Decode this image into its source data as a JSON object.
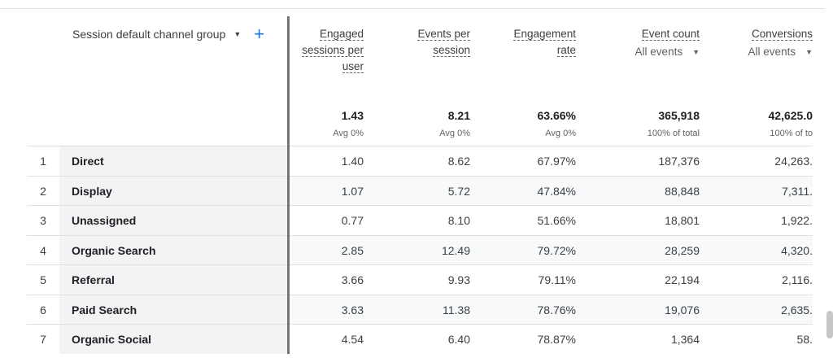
{
  "table": {
    "dimension": {
      "label": "Session default channel group"
    },
    "metrics": [
      {
        "title_lines": [
          "Engaged",
          "sessions per",
          "user"
        ],
        "total": "1.43",
        "total_note": "Avg 0%",
        "has_dropdown": false
      },
      {
        "title_lines": [
          "Events per",
          "session"
        ],
        "total": "8.21",
        "total_note": "Avg 0%",
        "has_dropdown": false
      },
      {
        "title_lines": [
          "Engagement",
          "rate"
        ],
        "total": "63.66%",
        "total_note": "Avg 0%",
        "has_dropdown": false
      },
      {
        "title_lines": [
          "Event count"
        ],
        "subtitle": "All events",
        "total": "365,918",
        "total_note": "100% of total",
        "has_dropdown": true
      },
      {
        "title_lines": [
          "Conversions"
        ],
        "subtitle": "All events",
        "total": "42,625.0",
        "total_note": "100% of to",
        "has_dropdown": true
      }
    ],
    "rows": [
      {
        "rank": "1",
        "channel": "Direct",
        "values": [
          "1.40",
          "8.62",
          "67.97%",
          "187,376",
          "24,263."
        ]
      },
      {
        "rank": "2",
        "channel": "Display",
        "values": [
          "1.07",
          "5.72",
          "47.84%",
          "88,848",
          "7,311."
        ]
      },
      {
        "rank": "3",
        "channel": "Unassigned",
        "values": [
          "0.77",
          "8.10",
          "51.66%",
          "18,801",
          "1,922."
        ]
      },
      {
        "rank": "4",
        "channel": "Organic Search",
        "values": [
          "2.85",
          "12.49",
          "79.72%",
          "28,259",
          "4,320."
        ]
      },
      {
        "rank": "5",
        "channel": "Referral",
        "values": [
          "3.66",
          "9.93",
          "79.11%",
          "22,194",
          "2,116."
        ]
      },
      {
        "rank": "6",
        "channel": "Paid Search",
        "values": [
          "3.63",
          "11.38",
          "78.76%",
          "19,076",
          "2,635."
        ]
      },
      {
        "rank": "7",
        "channel": "Organic Social",
        "values": [
          "4.54",
          "6.40",
          "78.87%",
          "1,364",
          "58."
        ]
      }
    ]
  },
  "icons": {
    "dropdown": "caret-down-icon",
    "add": "plus-icon"
  },
  "colors": {
    "accent": "#1a73e8",
    "dimension_bg": "#f1f3f4",
    "separator": "#757575"
  }
}
